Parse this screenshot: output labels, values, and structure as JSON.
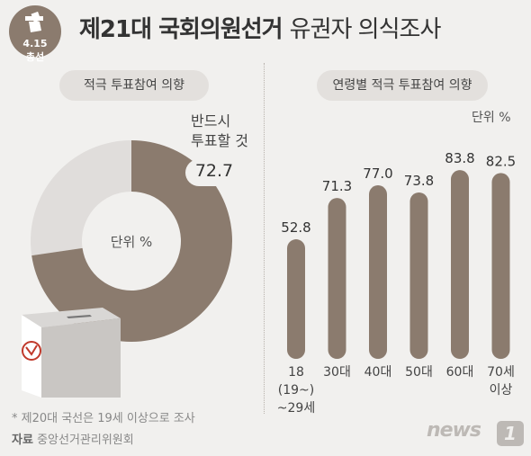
{
  "badge": {
    "date": "4.15",
    "label": "총선"
  },
  "title": {
    "bold": "제21대 국회의원선거",
    "light": "유권자 의식조사"
  },
  "left_panel": {
    "pill": "적극 투표참여 의향",
    "callout_line1": "반드시",
    "callout_line2": "투표할 것",
    "value_text": "72.7",
    "unit": "단위 %"
  },
  "right_panel": {
    "pill": "연령별 적극 투표참여 의향",
    "unit": "단위 %"
  },
  "footnote": "* 제20대 국선은 19세 이상으로 조사",
  "source": {
    "label": "자료",
    "text": "중앙선거관리위원회"
  },
  "logo": {
    "text": "news",
    "mark": "1"
  },
  "colors": {
    "accent": "#8b7b6e",
    "donut_rest": "#e0dddb",
    "background": "#f1f0ee"
  },
  "chart_data": [
    {
      "type": "pie",
      "categories": [
        "반드시 투표할 것"
      ],
      "values": [
        72.7
      ],
      "unit": "%",
      "style": "donut"
    },
    {
      "type": "bar",
      "categories": [
        [
          "18",
          "(19~)",
          "~29세"
        ],
        [
          "30대"
        ],
        [
          "40대"
        ],
        [
          "50대"
        ],
        [
          "60대"
        ],
        [
          "70세",
          "이상"
        ]
      ],
      "values": [
        52.8,
        71.3,
        77.0,
        73.8,
        83.8,
        82.5
      ],
      "value_labels": [
        "52.8",
        "71.3",
        "77.0",
        "73.8",
        "83.8",
        "82.5"
      ],
      "unit": "%",
      "ylim": [
        0,
        100
      ],
      "grid": false
    }
  ]
}
